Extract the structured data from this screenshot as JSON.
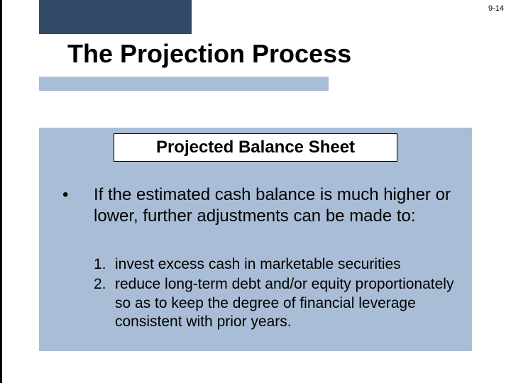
{
  "page_number": "9-14",
  "title": "The Projection Process",
  "subtitle": "Projected Balance Sheet",
  "bullet": {
    "marker": "•",
    "text": "If the estimated cash balance is much higher or lower, further adjustments can be made to:"
  },
  "numbered": [
    {
      "label": "1.",
      "text": "invest excess cash in marketable securities"
    },
    {
      "label": "2.",
      "text": "reduce long-term debt and/or equity proportionately so as to keep the degree of financial leverage consistent with prior years."
    }
  ],
  "colors": {
    "dark_block": "#334a66",
    "light_block": "#a9bdd6",
    "background": "#ffffff",
    "text": "#000000"
  }
}
